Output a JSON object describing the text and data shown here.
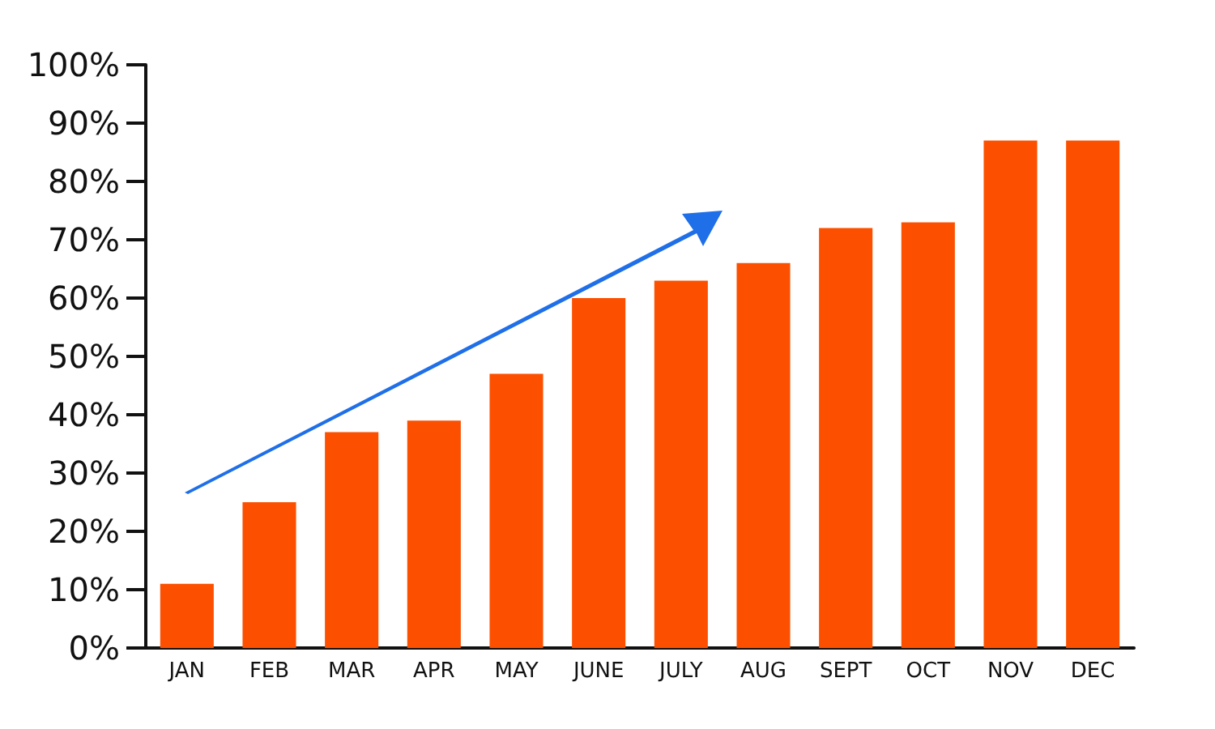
{
  "chart_data": {
    "type": "bar",
    "categories": [
      "JAN",
      "FEB",
      "MAR",
      "APR",
      "MAY",
      "JUNE",
      "JULY",
      "AUG",
      "SEPT",
      "OCT",
      "NOV",
      "DEC"
    ],
    "values": [
      11,
      25,
      37,
      39,
      47,
      60,
      63,
      66,
      72,
      73,
      87,
      87
    ],
    "color": "#fc5000",
    "ylim": [
      0,
      100
    ],
    "yticks": [
      {
        "value": 0,
        "label": "0%"
      },
      {
        "value": 10,
        "label": "10%"
      },
      {
        "value": 20,
        "label": "20%"
      },
      {
        "value": 30,
        "label": "30%"
      },
      {
        "value": 40,
        "label": "40%"
      },
      {
        "value": 50,
        "label": "50%"
      },
      {
        "value": 60,
        "label": "60%"
      },
      {
        "value": 70,
        "label": "70%"
      },
      {
        "value": 80,
        "label": "80%"
      },
      {
        "value": 90,
        "label": "90%"
      },
      {
        "value": 100,
        "label": "100%"
      }
    ],
    "grid": false
  }
}
